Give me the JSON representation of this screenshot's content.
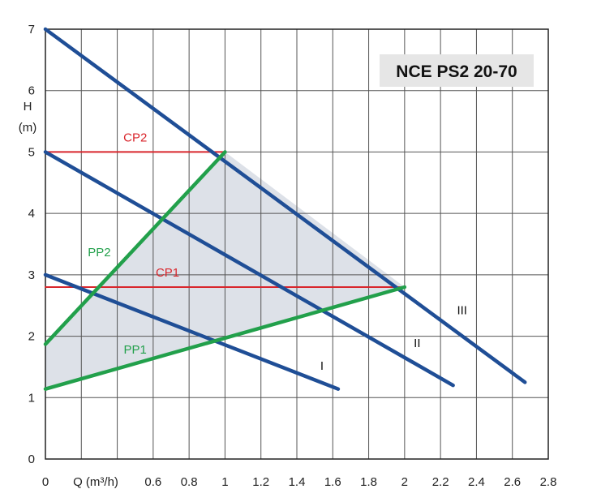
{
  "chart_data": {
    "type": "line",
    "title": "NCE PS2 20-70",
    "xlabel": "Q (m³/h)",
    "ylabel_line1": "H",
    "ylabel_line2": "(m)",
    "xlim": [
      0,
      2.8
    ],
    "ylim": [
      0,
      7
    ],
    "xticks": [
      0,
      0.2,
      0.4,
      0.6,
      0.8,
      1,
      1.2,
      1.4,
      1.6,
      1.8,
      2,
      2.2,
      2.4,
      2.6,
      2.8
    ],
    "xtick_labels": [
      "0",
      "Q (m³/h)",
      "",
      "0.6",
      "0.8",
      "1",
      "1.2",
      "1.4",
      "1.6",
      "1.8",
      "2",
      "2.2",
      "2.4",
      "2.6",
      "2.8"
    ],
    "yticks": [
      0,
      1,
      2,
      3,
      4,
      5,
      6,
      7
    ],
    "ytick_labels": [
      "0",
      "1",
      "2",
      "3",
      "4",
      "5",
      "6",
      "7"
    ],
    "grid": true,
    "shaded_region": {
      "color": "#dde1e8",
      "points": [
        [
          0,
          1.87
        ],
        [
          1,
          5
        ],
        [
          2,
          2.8
        ],
        [
          0,
          1.14
        ]
      ]
    },
    "series": [
      {
        "name": "I",
        "color": "#1f4e96",
        "points": [
          [
            0,
            3.0
          ],
          [
            1.63,
            1.14
          ]
        ]
      },
      {
        "name": "II",
        "color": "#1f4e96",
        "points": [
          [
            0,
            5.0
          ],
          [
            2.27,
            1.2
          ]
        ]
      },
      {
        "name": "III",
        "color": "#1f4e96",
        "points": [
          [
            0,
            7.0
          ],
          [
            2.67,
            1.25
          ]
        ]
      },
      {
        "name": "PP2",
        "color": "#22a04b",
        "points": [
          [
            0,
            1.87
          ],
          [
            1,
            5.0
          ]
        ]
      },
      {
        "name": "PP1",
        "color": "#22a04b",
        "points": [
          [
            0,
            1.14
          ],
          [
            2,
            2.8
          ]
        ]
      },
      {
        "name": "CP2",
        "color": "#d9262c",
        "points": [
          [
            0,
            5.0
          ],
          [
            1,
            5.0
          ]
        ]
      },
      {
        "name": "CP1",
        "color": "#d9262c",
        "points": [
          [
            0,
            2.8
          ],
          [
            2,
            2.8
          ]
        ]
      }
    ],
    "annotations": [
      {
        "text": "CP2",
        "x": 0.5,
        "y": 5.17,
        "color": "#d9262c"
      },
      {
        "text": "CP1",
        "x": 0.68,
        "y": 2.97,
        "color": "#d9262c"
      },
      {
        "text": "PP2",
        "x": 0.3,
        "y": 3.3,
        "color": "#22a04b"
      },
      {
        "text": "PP1",
        "x": 0.5,
        "y": 1.72,
        "color": "#22a04b"
      },
      {
        "text": "I",
        "x": 1.54,
        "y": 1.45,
        "color": "#111111"
      },
      {
        "text": "II",
        "x": 2.07,
        "y": 1.82,
        "color": "#111111"
      },
      {
        "text": "III",
        "x": 2.32,
        "y": 2.36,
        "color": "#111111"
      }
    ]
  }
}
